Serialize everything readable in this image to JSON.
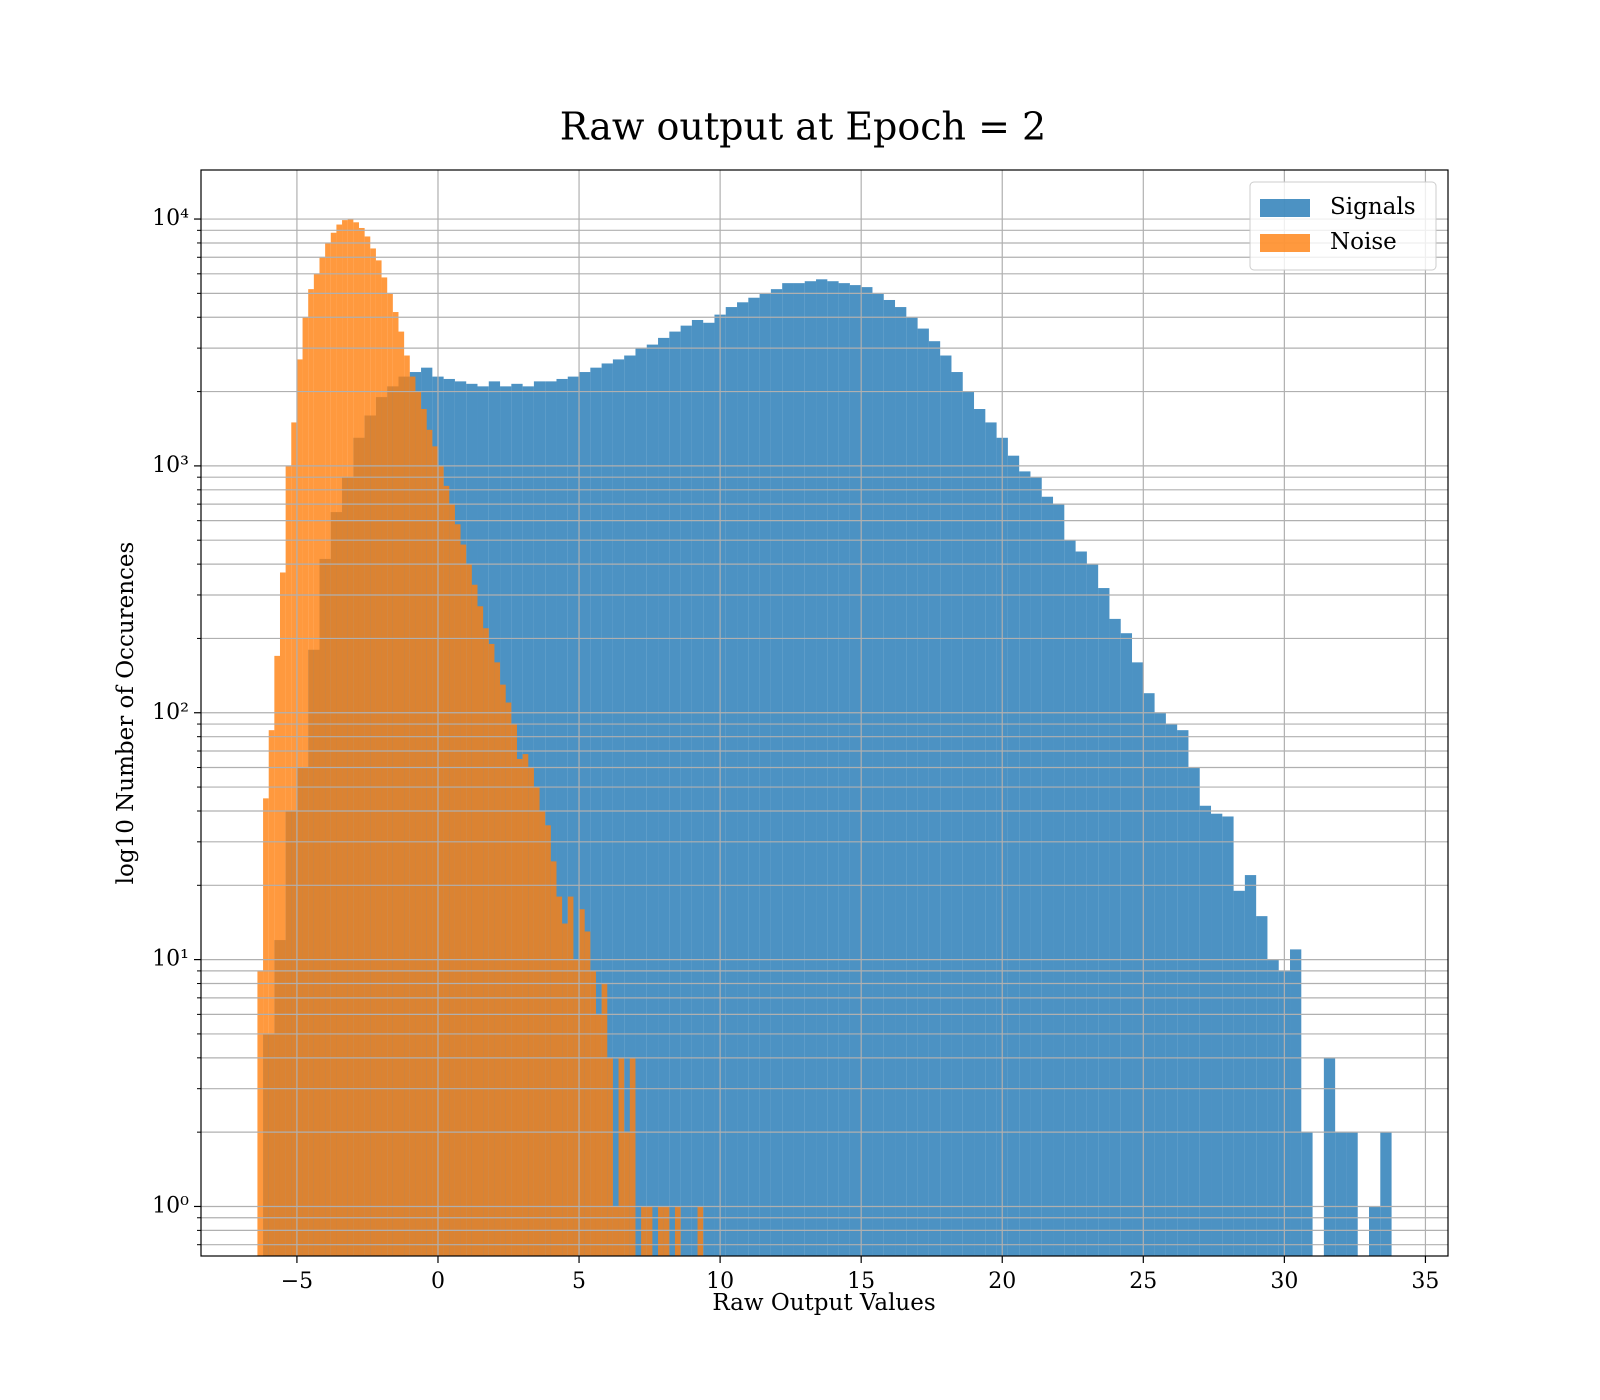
{
  "chart_data": {
    "type": "histogram",
    "title": "Raw output at Epoch = 2",
    "xlabel": "Raw Output Values",
    "ylabel": "log10 Number of Occurences",
    "xlim": [
      -8.4,
      35.8
    ],
    "ylim": [
      0.63,
      15800
    ],
    "yscale": "log",
    "grid": true,
    "legend": "upper right",
    "xticks": [
      {
        "value": -5,
        "label": "−5"
      },
      0,
      5,
      10,
      15,
      20,
      25,
      30,
      35
    ],
    "yticks": [
      {
        "value": 1,
        "label": "10⁰"
      },
      {
        "value": 10,
        "label": "10¹"
      },
      {
        "value": 100,
        "label": "10²"
      },
      {
        "value": 1000,
        "label": "10³"
      },
      {
        "value": 10000,
        "label": "10⁴"
      }
    ],
    "yminorticks": [
      0.7,
      0.8,
      0.9,
      2,
      3,
      4,
      5,
      6,
      7,
      8,
      9,
      20,
      30,
      40,
      50,
      60,
      70,
      80,
      90,
      200,
      300,
      400,
      500,
      600,
      700,
      800,
      900,
      2000,
      3000,
      4000,
      5000,
      6000,
      7000,
      8000,
      9000
    ],
    "series": [
      {
        "name": "Signals",
        "color": "#1f77b4",
        "bins": [
          -6.2,
          -5.8,
          -5.4,
          -5.0,
          -4.6,
          -4.2,
          -3.8,
          -3.4,
          -3.0,
          -2.6,
          -2.2,
          -1.8,
          -1.4,
          -1.0,
          -0.6,
          -0.2,
          0.2,
          0.6,
          1.0,
          1.4,
          1.8,
          2.2,
          2.6,
          3.0,
          3.4,
          3.8,
          4.2,
          4.6,
          5.0,
          5.4,
          5.8,
          6.2,
          6.6,
          7.0,
          7.4,
          7.8,
          8.2,
          8.6,
          9.0,
          9.4,
          9.8,
          10.2,
          10.6,
          11.0,
          11.4,
          11.8,
          12.2,
          12.6,
          13.0,
          13.4,
          13.8,
          14.2,
          14.6,
          15.0,
          15.4,
          15.8,
          16.2,
          16.6,
          17.0,
          17.4,
          17.8,
          18.2,
          18.6,
          19.0,
          19.4,
          19.8,
          20.2,
          20.6,
          21.0,
          21.4,
          21.8,
          22.2,
          22.6,
          23.0,
          23.4,
          23.8,
          24.2,
          24.6,
          25.0,
          25.4,
          25.8,
          26.2,
          26.6,
          27.0,
          27.4,
          27.8,
          28.2,
          28.6,
          29.0,
          29.4,
          29.8,
          30.2,
          30.6,
          31.0,
          31.4,
          31.8,
          32.2,
          32.6,
          33.0,
          33.4,
          33.8
        ],
        "values": [
          5,
          12,
          40,
          60,
          180,
          420,
          650,
          900,
          1300,
          1600,
          1900,
          2100,
          2300,
          2400,
          2500,
          2300,
          2250,
          2200,
          2150,
          2100,
          2200,
          2100,
          2150,
          2100,
          2200,
          2200,
          2250,
          2300,
          2400,
          2500,
          2600,
          2700,
          2800,
          3000,
          3100,
          3300,
          3500,
          3700,
          3900,
          3800,
          4100,
          4400,
          4600,
          4800,
          5000,
          5200,
          5500,
          5500,
          5600,
          5700,
          5600,
          5500,
          5400,
          5300,
          5000,
          4700,
          4400,
          4000,
          3600,
          3200,
          2800,
          2400,
          2000,
          1700,
          1500,
          1300,
          1100,
          950,
          900,
          750,
          700,
          500,
          450,
          400,
          320,
          240,
          210,
          160,
          120,
          100,
          90,
          85,
          60,
          42,
          39,
          38,
          19,
          22,
          15,
          10,
          9,
          11,
          2,
          0,
          4,
          2,
          2,
          0,
          1,
          2
        ]
      },
      {
        "name": "Noise",
        "color": "#ff7f0e",
        "bins": [
          -6.4,
          -6.2,
          -6.0,
          -5.8,
          -5.6,
          -5.4,
          -5.2,
          -5.0,
          -4.8,
          -4.6,
          -4.4,
          -4.2,
          -4.0,
          -3.8,
          -3.6,
          -3.4,
          -3.2,
          -3.0,
          -2.8,
          -2.6,
          -2.4,
          -2.2,
          -2.0,
          -1.8,
          -1.6,
          -1.4,
          -1.2,
          -1.0,
          -0.8,
          -0.6,
          -0.4,
          -0.2,
          0.0,
          0.2,
          0.4,
          0.6,
          0.8,
          1.0,
          1.2,
          1.4,
          1.6,
          1.8,
          2.0,
          2.2,
          2.4,
          2.6,
          2.8,
          3.0,
          3.2,
          3.4,
          3.6,
          3.8,
          4.0,
          4.2,
          4.4,
          4.6,
          4.8,
          5.0,
          5.2,
          5.4,
          5.6,
          5.8,
          6.0,
          6.2,
          6.4,
          6.6,
          6.8,
          7.0,
          7.2,
          7.4,
          7.6,
          7.8,
          8.0,
          8.2,
          8.4,
          8.6,
          8.8,
          9.0,
          9.2,
          9.4,
          9.6
        ],
        "values": [
          9,
          45,
          85,
          170,
          370,
          1000,
          1500,
          2700,
          4000,
          5200,
          6000,
          7000,
          8000,
          8800,
          9500,
          9900,
          10000,
          9700,
          9200,
          8500,
          7600,
          6800,
          5800,
          5000,
          4200,
          3500,
          2800,
          2300,
          2000,
          1700,
          1400,
          1200,
          1000,
          830,
          700,
          580,
          480,
          400,
          330,
          270,
          220,
          190,
          160,
          130,
          110,
          90,
          65,
          68,
          60,
          50,
          40,
          35,
          25,
          18,
          14,
          18,
          10,
          16,
          13,
          9,
          6,
          8,
          4,
          1,
          4,
          2,
          4,
          0,
          1,
          1,
          0,
          1,
          1,
          0,
          1,
          0,
          0,
          0,
          1,
          0
        ]
      }
    ]
  }
}
